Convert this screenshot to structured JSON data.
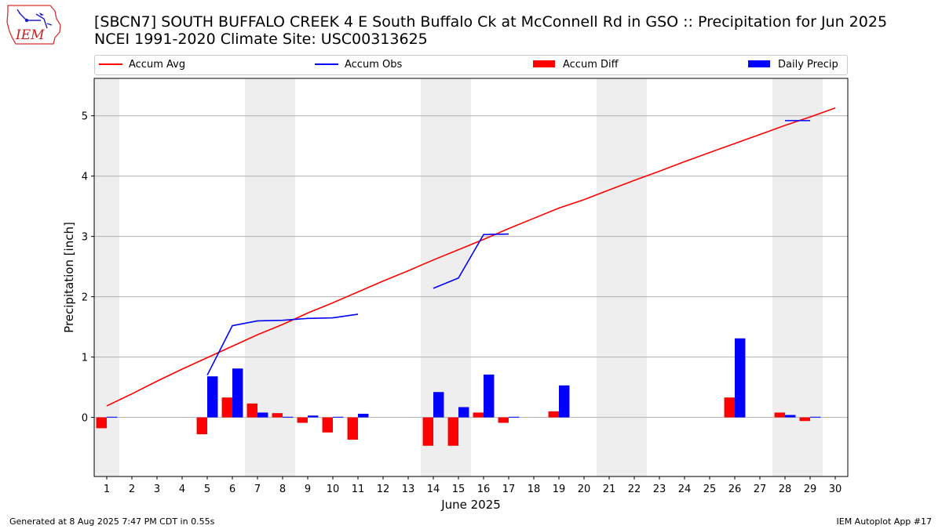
{
  "header": {
    "title_line1": "[SBCN7] SOUTH BUFFALO CREEK 4 E South Buffalo Ck at McConnell Rd in GSO :: Precipitation for Jun 2025",
    "title_line2": "NCEI 1991-2020 Climate Site: USC00313625",
    "logo_text": "IEM"
  },
  "footer": {
    "generated": "Generated at 8 Aug 2025 7:47 PM CDT in 0.55s",
    "app": "IEM Autoplot App #17"
  },
  "colors": {
    "accum_avg": "#ff0000",
    "accum_obs": "#0000ff",
    "accum_diff": "#ff0000",
    "daily_precip": "#0000ff",
    "weekend_shade": "#eeeeee",
    "grid": "#b0b0b0"
  },
  "chart_data": {
    "type": "bar",
    "xlabel": "June 2025",
    "ylabel": "Precipitation [inch]",
    "xlim": [
      0.5,
      30.5
    ],
    "ylim": [
      -0.98,
      5.62
    ],
    "ytick_values": [
      0,
      1,
      2,
      3,
      4,
      5
    ],
    "ytick_labels": [
      "0",
      "1",
      "2",
      "3",
      "4",
      "5"
    ],
    "xtick_labels": [
      "1",
      "2",
      "3",
      "4",
      "5",
      "6",
      "7",
      "8",
      "9",
      "10",
      "11",
      "12",
      "13",
      "14",
      "15",
      "16",
      "17",
      "18",
      "19",
      "20",
      "21",
      "22",
      "23",
      "24",
      "25",
      "26",
      "27",
      "28",
      "29",
      "30"
    ],
    "grid": "horizontal",
    "legend_position": "top",
    "legend": [
      "Accum Avg",
      "Accum Obs",
      "Accum Diff",
      "Daily Precip"
    ],
    "weekend_spans": [
      [
        0.5,
        1.5
      ],
      [
        6.5,
        8.5
      ],
      [
        13.5,
        15.5
      ],
      [
        20.5,
        22.5
      ],
      [
        27.5,
        29.5
      ]
    ],
    "days": [
      1,
      2,
      3,
      4,
      5,
      6,
      7,
      8,
      9,
      10,
      11,
      12,
      13,
      14,
      15,
      16,
      17,
      18,
      19,
      20,
      21,
      22,
      23,
      24,
      25,
      26,
      27,
      28,
      29,
      30
    ],
    "series": [
      {
        "name": "Accum Avg",
        "kind": "line",
        "values": [
          0.19,
          0.39,
          0.6,
          0.8,
          0.99,
          1.18,
          1.37,
          1.54,
          1.73,
          1.9,
          2.08,
          2.26,
          2.43,
          2.61,
          2.78,
          2.95,
          3.13,
          3.3,
          3.47,
          3.61,
          3.77,
          3.93,
          4.08,
          4.24,
          4.39,
          4.54,
          4.69,
          4.84,
          4.98,
          5.13
        ]
      },
      {
        "name": "Accum Obs",
        "kind": "line",
        "values": [
          null,
          null,
          null,
          null,
          0.7,
          1.52,
          1.6,
          1.61,
          1.64,
          1.65,
          1.71,
          null,
          null,
          2.14,
          2.31,
          3.03,
          3.04,
          null,
          null,
          null,
          null,
          null,
          null,
          null,
          null,
          null,
          null,
          4.92,
          4.92,
          null
        ]
      },
      {
        "name": "Accum Diff",
        "kind": "bar",
        "values": [
          -0.18,
          null,
          null,
          null,
          -0.28,
          0.33,
          0.23,
          0.07,
          -0.09,
          -0.25,
          -0.37,
          null,
          null,
          -0.47,
          -0.47,
          0.08,
          -0.09,
          null,
          0.1,
          null,
          null,
          null,
          null,
          null,
          null,
          0.33,
          null,
          0.08,
          -0.06,
          null
        ]
      },
      {
        "name": "Daily Precip",
        "kind": "bar",
        "values": [
          0.01,
          null,
          null,
          null,
          0.68,
          0.81,
          0.08,
          0.01,
          0.03,
          0.01,
          0.06,
          null,
          null,
          0.42,
          0.17,
          0.71,
          0.01,
          null,
          0.53,
          null,
          null,
          null,
          null,
          null,
          null,
          1.31,
          null,
          0.04,
          0.01,
          null
        ]
      }
    ]
  }
}
